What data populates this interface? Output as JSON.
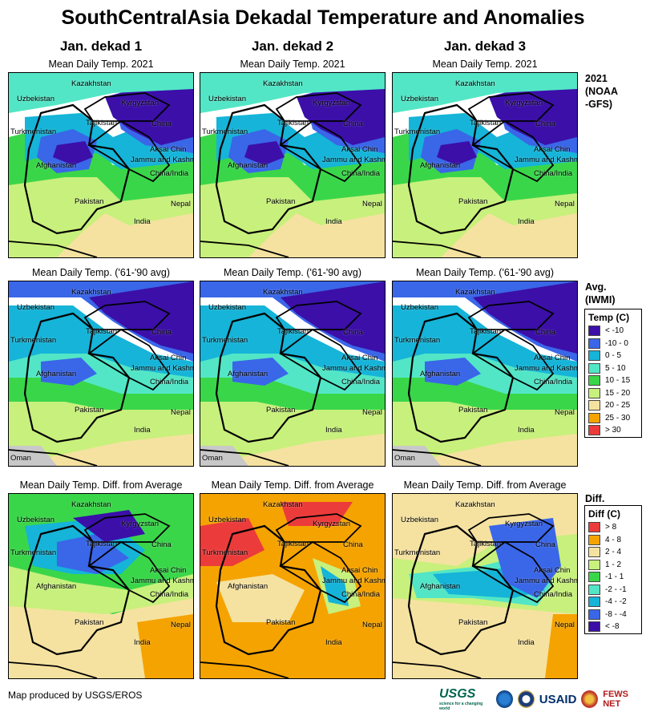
{
  "title": "SouthCentralAsia Dekadal Temperature and Anomalies",
  "columns": [
    "Jan. dekad 1",
    "Jan. dekad 2",
    "Jan. dekad 3"
  ],
  "row_captions": [
    "Mean Daily Temp. 2021",
    "Mean Daily Temp. ('61-'90 avg)",
    "Mean Daily Temp. Diff. from Average"
  ],
  "row_labels": {
    "r1": [
      "2021",
      "(NOAA",
      "-GFS)"
    ],
    "r2": [
      "Avg.",
      "(IWMI)"
    ],
    "r3": [
      "Diff."
    ]
  },
  "map_labels": {
    "kazakhstan": "Kazakhstan",
    "uzbekistan": "Uzbekistan",
    "kyrgyzstan": "Kyrgyzstan",
    "tajikistan": "Tajikistan",
    "turkmenistan": "Turkmenistan",
    "china": "China",
    "aksai": "Aksai Chin",
    "jammu": "Jammu and Kashmir",
    "chinaindia": "China/India",
    "afghanistan": "Afghanistan",
    "nepal": "Nepal",
    "pakistan": "Pakistan",
    "india": "India",
    "oman": "Oman"
  },
  "legend_temp": {
    "title": "Temp (C)",
    "items": [
      {
        "label": "< -10",
        "color": "#3b0fa8"
      },
      {
        "label": "-10 - 0",
        "color": "#3a66e8"
      },
      {
        "label": "0 - 5",
        "color": "#15b4d8"
      },
      {
        "label": "5 - 10",
        "color": "#52e6c6"
      },
      {
        "label": "10 - 15",
        "color": "#3ad64a"
      },
      {
        "label": "15 - 20",
        "color": "#c8f07c"
      },
      {
        "label": "20 - 25",
        "color": "#f5e2a0"
      },
      {
        "label": "25 - 30",
        "color": "#f5a300"
      },
      {
        "label": "> 30",
        "color": "#ec3b3b"
      }
    ]
  },
  "legend_diff": {
    "title": "Diff (C)",
    "items": [
      {
        "label": "> 8",
        "color": "#ec3b3b"
      },
      {
        "label": "4 - 8",
        "color": "#f5a300"
      },
      {
        "label": "2 - 4",
        "color": "#f5e2a0"
      },
      {
        "label": "1 - 2",
        "color": "#c8f07c"
      },
      {
        "label": "-1 - 1",
        "color": "#3ad64a"
      },
      {
        "label": "-2 - -1",
        "color": "#52e6c6"
      },
      {
        "label": "-4 - -2",
        "color": "#15b4d8"
      },
      {
        "label": "-8 - -4",
        "color": "#3a66e8"
      },
      {
        "label": "< -8",
        "color": "#3b0fa8"
      }
    ]
  },
  "footer": "Map produced by USGS/EROS",
  "logos": {
    "usgs": "USGS",
    "usgs_tag": "science for a changing world",
    "usaid": "USAID",
    "fews": "FEWS NET"
  }
}
